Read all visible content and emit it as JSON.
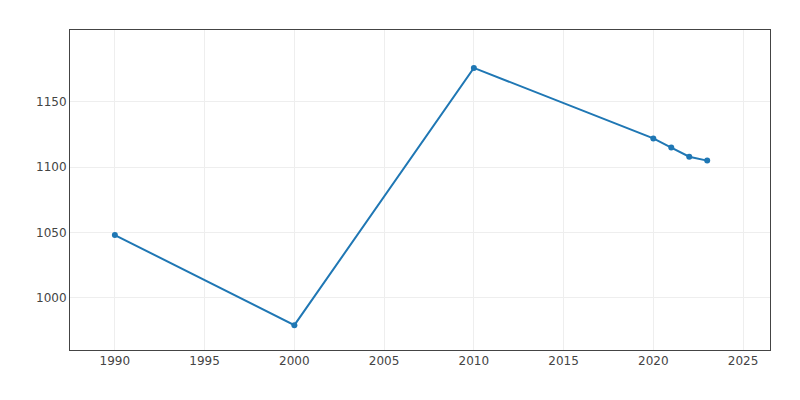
{
  "chart_data": {
    "type": "line",
    "x": [
      1990,
      2000,
      2010,
      2020,
      2021,
      2022,
      2023
    ],
    "values": [
      1048,
      979,
      1176,
      1122,
      1115,
      1108,
      1105
    ],
    "marker": "circle",
    "xlim": [
      1987.5,
      2026.5
    ],
    "ylim": [
      960,
      1205
    ],
    "xticks": [
      1990,
      1995,
      2000,
      2005,
      2010,
      2015,
      2020,
      2025
    ],
    "yticks": [
      1000,
      1050,
      1100,
      1150
    ],
    "grid": true
  }
}
